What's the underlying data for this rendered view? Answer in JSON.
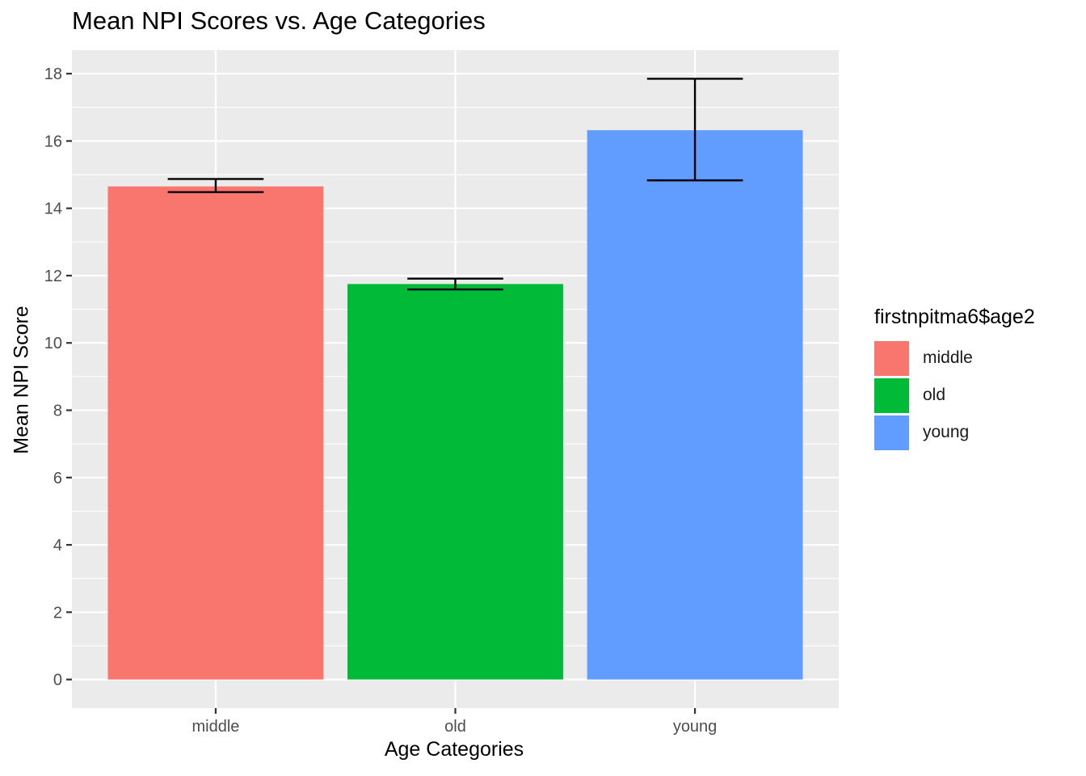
{
  "chart_data": {
    "type": "bar",
    "title": "Mean NPI Scores vs. Age Categories",
    "xlabel": "Age Categories",
    "ylabel": "Mean NPI Score",
    "categories": [
      "middle",
      "old",
      "young"
    ],
    "values": [
      14.65,
      11.75,
      16.32
    ],
    "error_bars": [
      {
        "low": 14.48,
        "high": 14.87
      },
      {
        "low": 11.59,
        "high": 11.91
      },
      {
        "low": 14.83,
        "high": 17.85
      }
    ],
    "colors": [
      "#F8766D",
      "#00BA38",
      "#619CFF"
    ],
    "ylim": [
      -0.85,
      18.7
    ],
    "yticks": [
      0,
      2,
      4,
      6,
      8,
      10,
      12,
      14,
      16,
      18
    ],
    "grid": true,
    "panel_background": "#EBEBEB",
    "legend": {
      "title": "firstnpitma6$age2",
      "position": "right",
      "items": [
        {
          "label": "middle",
          "color": "#F8766D"
        },
        {
          "label": "old",
          "color": "#00BA38"
        },
        {
          "label": "young",
          "color": "#619CFF"
        }
      ]
    }
  }
}
